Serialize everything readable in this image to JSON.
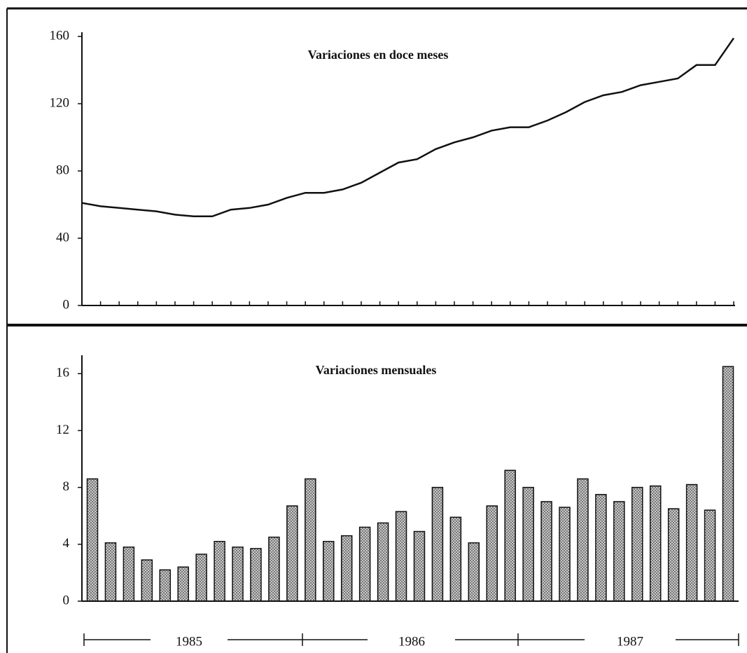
{
  "chart_data": [
    {
      "type": "line",
      "title": "Variaciones en doce meses",
      "color": "#111111",
      "categories": [
        null,
        null,
        null,
        null,
        null,
        null,
        null,
        null,
        null,
        null,
        null,
        null,
        null,
        null,
        null,
        null,
        null,
        null,
        null,
        null,
        null,
        null,
        null,
        null,
        null,
        null,
        null,
        null,
        null,
        null,
        null,
        null,
        null,
        null,
        null,
        null
      ],
      "values": [
        61,
        59,
        58,
        57,
        56,
        54,
        53,
        53,
        57,
        58,
        60,
        64,
        67,
        67,
        69,
        73,
        79,
        85,
        87,
        93,
        97,
        100,
        104,
        106,
        106,
        110,
        115,
        121,
        125,
        127,
        131,
        133,
        135,
        143,
        143,
        159
      ],
      "ylim": [
        0,
        160
      ],
      "yticks": [
        0,
        40,
        80,
        120,
        160
      ]
    },
    {
      "type": "bar",
      "title": "Variaciones mensuales",
      "color": "#777777",
      "categories": [
        null,
        null,
        null,
        null,
        null,
        null,
        null,
        null,
        null,
        null,
        null,
        null,
        null,
        null,
        null,
        null,
        null,
        null,
        null,
        null,
        null,
        null,
        null,
        null,
        null,
        null,
        null,
        null,
        null,
        null,
        null,
        null,
        null,
        null,
        null,
        null
      ],
      "values": [
        8.6,
        4.1,
        3.8,
        2.9,
        2.2,
        2.4,
        3.3,
        4.2,
        3.8,
        3.7,
        4.5,
        6.7,
        8.6,
        4.2,
        4.6,
        5.2,
        5.5,
        6.3,
        4.9,
        8.0,
        5.9,
        4.1,
        6.7,
        9.2,
        8.0,
        7.0,
        6.6,
        8.6,
        7.5,
        7.0,
        8.0,
        8.1,
        6.5,
        8.2,
        6.4,
        16.5
      ],
      "ylim": [
        0,
        17
      ],
      "yticks": [
        0,
        4,
        8,
        12,
        16
      ],
      "x_groups": [
        "1985",
        "1986",
        "1987"
      ]
    }
  ]
}
